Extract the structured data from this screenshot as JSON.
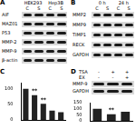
{
  "panels": {
    "a": {
      "label": "A",
      "groups": [
        "HEK293",
        "Hep3B"
      ],
      "lanes": [
        "C",
        "S",
        "C",
        "S"
      ],
      "rows": [
        "AIF",
        "MAZ01",
        "P53",
        "MMP-2",
        "MMP-9",
        "β-actin"
      ]
    },
    "b": {
      "label": "B",
      "groups": [
        "0 h",
        "24 h"
      ],
      "lanes": [
        "C",
        "S",
        "C",
        "S"
      ],
      "rows": [
        "MMP2",
        "MMP9",
        "TIMP1",
        "RECK",
        "GAPDH"
      ]
    },
    "c": {
      "label": "C"
    },
    "d": {
      "label": "D",
      "treatments": [
        {
          "name": "TSA",
          "marks": [
            "-",
            "+",
            "+"
          ]
        },
        {
          "name": "EX",
          "marks": [
            "-",
            "-",
            "+"
          ]
        }
      ],
      "rows": [
        "MMP-9",
        "GAPDH"
      ]
    }
  },
  "chart_data": [
    {
      "type": "bar",
      "categories": [
        null,
        null,
        null,
        null,
        null
      ],
      "values": [
        100,
        80,
        52,
        30,
        25
      ],
      "color": "#222222",
      "ylim": [
        0,
        120
      ],
      "yticks": [
        0,
        50,
        100
      ],
      "grid": false,
      "tick_labels": "y",
      "annotations": [
        "**",
        "**"
      ]
    },
    {
      "type": "bar",
      "categories": [
        null,
        null,
        null
      ],
      "values": [
        100,
        55,
        75
      ],
      "color": "#222222",
      "ylim": [
        0,
        150
      ],
      "yticks": [
        0,
        50,
        100,
        150
      ],
      "grid": false,
      "tick_labels": "y",
      "annotations": [
        "**"
      ]
    }
  ]
}
